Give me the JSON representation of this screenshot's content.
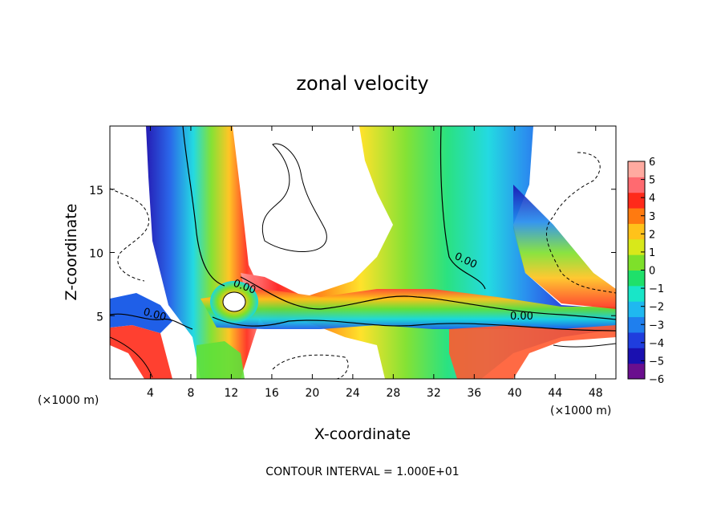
{
  "chart_data": {
    "type": "heatmap",
    "title": "zonal velocity",
    "xlabel": "X-coordinate",
    "ylabel": "Z-coordinate",
    "x_unit": "(×1000 m)",
    "x_unit_right": "(×1000 m)",
    "xlim": [
      0,
      50
    ],
    "ylim": [
      0,
      20
    ],
    "x_ticks": [
      "4",
      "8",
      "12",
      "16",
      "20",
      "24",
      "28",
      "32",
      "36",
      "40",
      "44",
      "48"
    ],
    "y_ticks": [
      "5",
      "10",
      "15"
    ],
    "colorbar": {
      "ticks": [
        "6",
        "5",
        "4",
        "3",
        "2",
        "1",
        "0",
        "−1",
        "−2",
        "−3",
        "−4",
        "−5",
        "−6"
      ],
      "range": [
        -6,
        6
      ],
      "colors": [
        "#6a0f8e",
        "#1a10b0",
        "#1f3dde",
        "#1f7fee",
        "#1fb8f0",
        "#18e6c8",
        "#1fe06a",
        "#7ee02a",
        "#d8e81a",
        "#ffc21a",
        "#ff7a10",
        "#ff2a1a",
        "#ff6a70",
        "#ffaaa0"
      ]
    },
    "contour_labels": [
      "0.00",
      "0.00",
      "0.00",
      "0.00"
    ],
    "footer": "CONTOUR INTERVAL = 1.000E+01"
  }
}
